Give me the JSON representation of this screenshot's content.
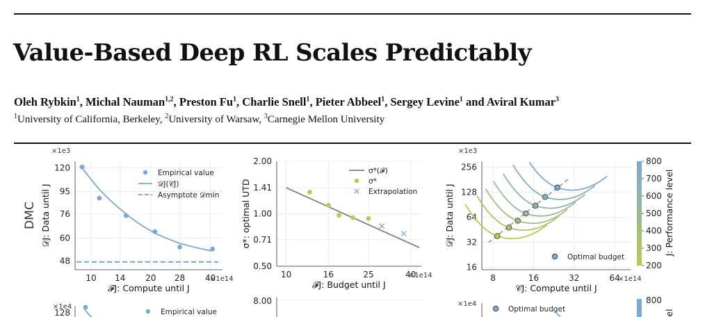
{
  "title": "Value-Based Deep RL Scales Predictably",
  "authors": [
    {
      "name": "Oleh Rybkin",
      "aff": "1"
    },
    {
      "name": "Michal Nauman",
      "aff": "1,2"
    },
    {
      "name": "Preston Fu",
      "aff": "1"
    },
    {
      "name": "Charlie Snell",
      "aff": "1"
    },
    {
      "name": "Pieter Abbeel",
      "aff": "1"
    },
    {
      "name": "Sergey Levine",
      "aff": "1"
    },
    {
      "name": "Aviral Kumar",
      "aff": "3"
    }
  ],
  "authors_joiner": ", ",
  "authors_last_joiner": " and ",
  "affiliations": [
    {
      "sup": "1",
      "name": "University of California, Berkeley"
    },
    {
      "sup": "2",
      "name": "University of Warsaw"
    },
    {
      "sup": "3",
      "name": "Carnegie Mellon University"
    }
  ],
  "row_label": "DMC",
  "colors": {
    "blue": "#7aa9d6",
    "green": "#b6cc4f",
    "gray": "#888888"
  },
  "chart_data": [
    {
      "type": "scatter",
      "multiplier_y": "×1e3",
      "multiplier_x": "×1e14",
      "xlabel": "𝓕J: Compute until J",
      "ylabel": "𝒟J: Data until J",
      "x_scale": "log",
      "y_scale": "log",
      "xticks": [
        10,
        14,
        20,
        28,
        40
      ],
      "yticks": [
        48,
        60,
        76,
        95,
        120
      ],
      "xlim": [
        8.3,
        46
      ],
      "ylim": [
        44,
        128
      ],
      "series": [
        {
          "name": "Empirical value",
          "kind": "points",
          "x": [
            9,
            11,
            15,
            21,
            28,
            41
          ],
          "y": [
            121,
            89,
            75,
            64,
            55,
            54
          ]
        },
        {
          "name": "𝒟J(𝒞J)",
          "kind": "line",
          "x": [
            9,
            10,
            11,
            12.5,
            14,
            16,
            18,
            21,
            24,
            28,
            33,
            38,
            41
          ],
          "y": [
            120,
            107,
            97,
            87,
            80,
            73,
            68,
            63,
            60,
            57,
            55,
            53.5,
            53
          ]
        },
        {
          "name": "Asymptote 𝒟min",
          "kind": "dashed",
          "y": 47.5
        }
      ]
    },
    {
      "type": "scatter",
      "multiplier_x": "×1e14",
      "xlabel": "𝓕J: Budget until J",
      "ylabel": "σ*: optimal UTD",
      "x_scale": "log",
      "y_scale": "log",
      "xticks": [
        10,
        16,
        25,
        40
      ],
      "yticks": [
        0.5,
        0.71,
        1.0,
        1.41,
        2.0
      ],
      "ytick_labels": [
        "0.50",
        "0.71",
        "1.00",
        "1.41",
        "2.00"
      ],
      "xlim": [
        9,
        45
      ],
      "ylim": [
        0.5,
        2.0
      ],
      "series": [
        {
          "name": "σ*(𝓕)",
          "kind": "line",
          "x": [
            10,
            44
          ],
          "y": [
            1.41,
            0.64
          ]
        },
        {
          "name": "σ*",
          "kind": "points",
          "x": [
            13,
            16,
            18,
            21,
            25
          ],
          "y": [
            1.33,
            1.12,
            0.98,
            0.95,
            0.94
          ]
        },
        {
          "name": "Extrapolation",
          "kind": "crosses",
          "x": [
            29,
            37
          ],
          "y": [
            0.85,
            0.77
          ]
        }
      ]
    },
    {
      "type": "line",
      "multiplier_y": "×1e3",
      "multiplier_x": "×1e14",
      "xlabel": "𝒞J: Compute until J",
      "ylabel": "𝒟J: Data until J",
      "x_scale": "log",
      "y_scale": "log",
      "xticks": [
        8,
        16,
        32,
        64
      ],
      "yticks": [
        16,
        32,
        64,
        128,
        256
      ],
      "xlim": [
        6.6,
        84
      ],
      "ylim": [
        15,
        300
      ],
      "colorbar": {
        "label": "J: Performance level",
        "ticks": [
          200,
          300,
          400,
          500,
          600,
          700,
          800
        ]
      },
      "legend": "Optimal budget",
      "iso_curves": [
        {
          "level": 200,
          "optimal": [
            8.6,
            38
          ]
        },
        {
          "level": 300,
          "optimal": [
            10.5,
            48
          ]
        },
        {
          "level": 400,
          "optimal": [
            12.2,
            58
          ]
        },
        {
          "level": 500,
          "optimal": [
            14,
            71
          ]
        },
        {
          "level": 600,
          "optimal": [
            16.5,
            88
          ]
        },
        {
          "level": 700,
          "optimal": [
            19.5,
            112
          ]
        },
        {
          "level": 800,
          "optimal": [
            24,
            145
          ]
        }
      ]
    }
  ],
  "partial": {
    "left_multiplier": "×1e4",
    "left_ytick": "128",
    "left_legend": "Empirical value",
    "mid_ytick": "8.00",
    "right_multiplier": "×1e4",
    "right_legend": "Optimal budget",
    "right_cbar_tick": "800",
    "right_cbar_label": "el"
  }
}
